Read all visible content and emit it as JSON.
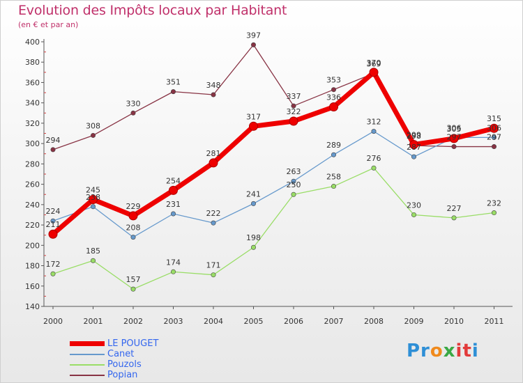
{
  "chart_data": {
    "type": "line",
    "title": "Evolution des Impôts locaux par Habitant",
    "subtitle": "(en € et par an)",
    "x": [
      "2000",
      "2001",
      "2002",
      "2003",
      "2004",
      "2005",
      "2006",
      "2007",
      "2008",
      "2009",
      "2010",
      "2011"
    ],
    "yticks": [
      140,
      160,
      180,
      200,
      220,
      240,
      260,
      280,
      300,
      320,
      340,
      360,
      380,
      400
    ],
    "ylim": [
      140,
      400
    ],
    "grid": false,
    "legend_position": "bottom-left",
    "series": [
      {
        "name": "LE POUGET",
        "color": "#ee0000",
        "values": [
          211,
          245,
          229,
          254,
          281,
          317,
          322,
          336,
          370,
          299,
          305,
          315
        ]
      },
      {
        "name": "Canet",
        "color": "#6699cc",
        "values": [
          224,
          238,
          208,
          231,
          222,
          241,
          263,
          289,
          312,
          287,
          306,
          306
        ]
      },
      {
        "name": "Pouzols",
        "color": "#99dd66",
        "values": [
          172,
          185,
          157,
          174,
          171,
          198,
          250,
          258,
          276,
          230,
          227,
          232
        ]
      },
      {
        "name": "Popian",
        "color": "#883344",
        "values": [
          294,
          308,
          330,
          351,
          348,
          397,
          337,
          353,
          369,
          298,
          297,
          297
        ]
      }
    ]
  },
  "branding": {
    "logo_parts": [
      "Pr",
      "o",
      "x",
      "it",
      "i"
    ]
  }
}
